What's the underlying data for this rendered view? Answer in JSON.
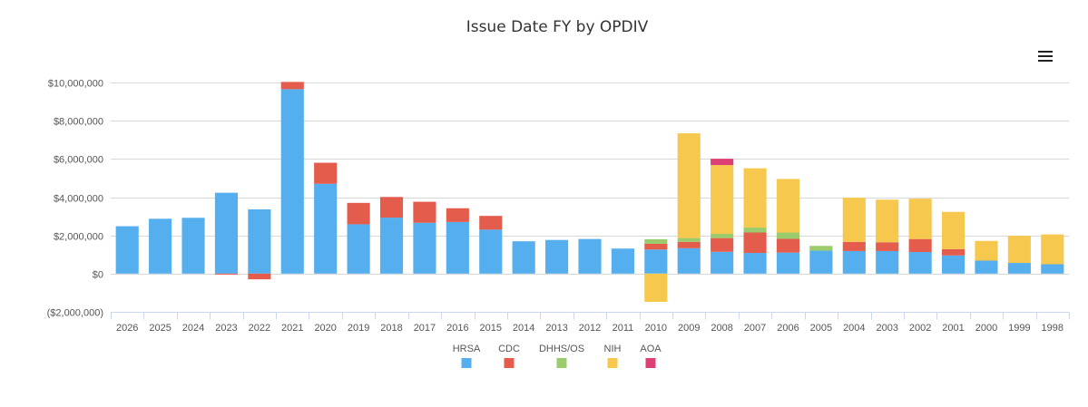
{
  "chart_data": {
    "type": "bar",
    "stacked": true,
    "title": "Issue Date FY by OPDIV",
    "xlabel": "",
    "ylabel": "",
    "ylim": [
      -2000000,
      10000000
    ],
    "yticks": [
      -2000000,
      0,
      2000000,
      4000000,
      6000000,
      8000000,
      10000000
    ],
    "ytick_labels": [
      "($2,000,000)",
      "$0",
      "$2,000,000",
      "$4,000,000",
      "$6,000,000",
      "$8,000,000",
      "$10,000,000"
    ],
    "grid": true,
    "legend_position": "bottom",
    "categories": [
      "2026",
      "2025",
      "2024",
      "2023",
      "2022",
      "2021",
      "2020",
      "2019",
      "2018",
      "2017",
      "2016",
      "2015",
      "2014",
      "2013",
      "2012",
      "2011",
      "2010",
      "2009",
      "2008",
      "2007",
      "2006",
      "2005",
      "2004",
      "2003",
      "2002",
      "2001",
      "2000",
      "1999",
      "1998"
    ],
    "series": [
      {
        "name": "HRSA",
        "color": "#55aeee",
        "values": [
          2480000,
          2870000,
          2920000,
          4230000,
          3360000,
          9650000,
          4700000,
          2580000,
          2930000,
          2660000,
          2700000,
          2300000,
          1690000,
          1760000,
          1810000,
          1310000,
          1260000,
          1330000,
          1140000,
          1080000,
          1100000,
          1200000,
          1180000,
          1180000,
          1130000,
          950000,
          680000,
          560000,
          490000
        ]
      },
      {
        "name": "CDC",
        "color": "#e45c4c",
        "values": [
          0,
          0,
          0,
          -50000,
          -300000,
          380000,
          1100000,
          1120000,
          1080000,
          1100000,
          720000,
          720000,
          0,
          0,
          0,
          0,
          300000,
          330000,
          720000,
          1070000,
          720000,
          0,
          480000,
          460000,
          680000,
          330000,
          0,
          0,
          0
        ]
      },
      {
        "name": "DHHS/OS",
        "color": "#9ccb6e",
        "values": [
          0,
          0,
          0,
          0,
          0,
          0,
          0,
          0,
          0,
          0,
          0,
          0,
          0,
          0,
          0,
          0,
          240000,
          200000,
          220000,
          260000,
          330000,
          250000,
          0,
          0,
          0,
          0,
          0,
          0,
          0
        ]
      },
      {
        "name": "NIH",
        "color": "#f7c84e",
        "values": [
          0,
          0,
          0,
          0,
          0,
          0,
          0,
          0,
          0,
          0,
          0,
          0,
          0,
          0,
          0,
          0,
          -1480000,
          5480000,
          3600000,
          3100000,
          2800000,
          0,
          2310000,
          2230000,
          2110000,
          1950000,
          1030000,
          1420000,
          1560000
        ]
      },
      {
        "name": "AOA",
        "color": "#dc3f73",
        "values": [
          0,
          0,
          0,
          0,
          0,
          0,
          0,
          0,
          0,
          0,
          0,
          0,
          0,
          0,
          0,
          0,
          0,
          0,
          330000,
          0,
          0,
          0,
          0,
          0,
          0,
          0,
          0,
          0,
          0
        ]
      }
    ]
  },
  "menu": {
    "icon": "hamburger-menu-icon"
  }
}
